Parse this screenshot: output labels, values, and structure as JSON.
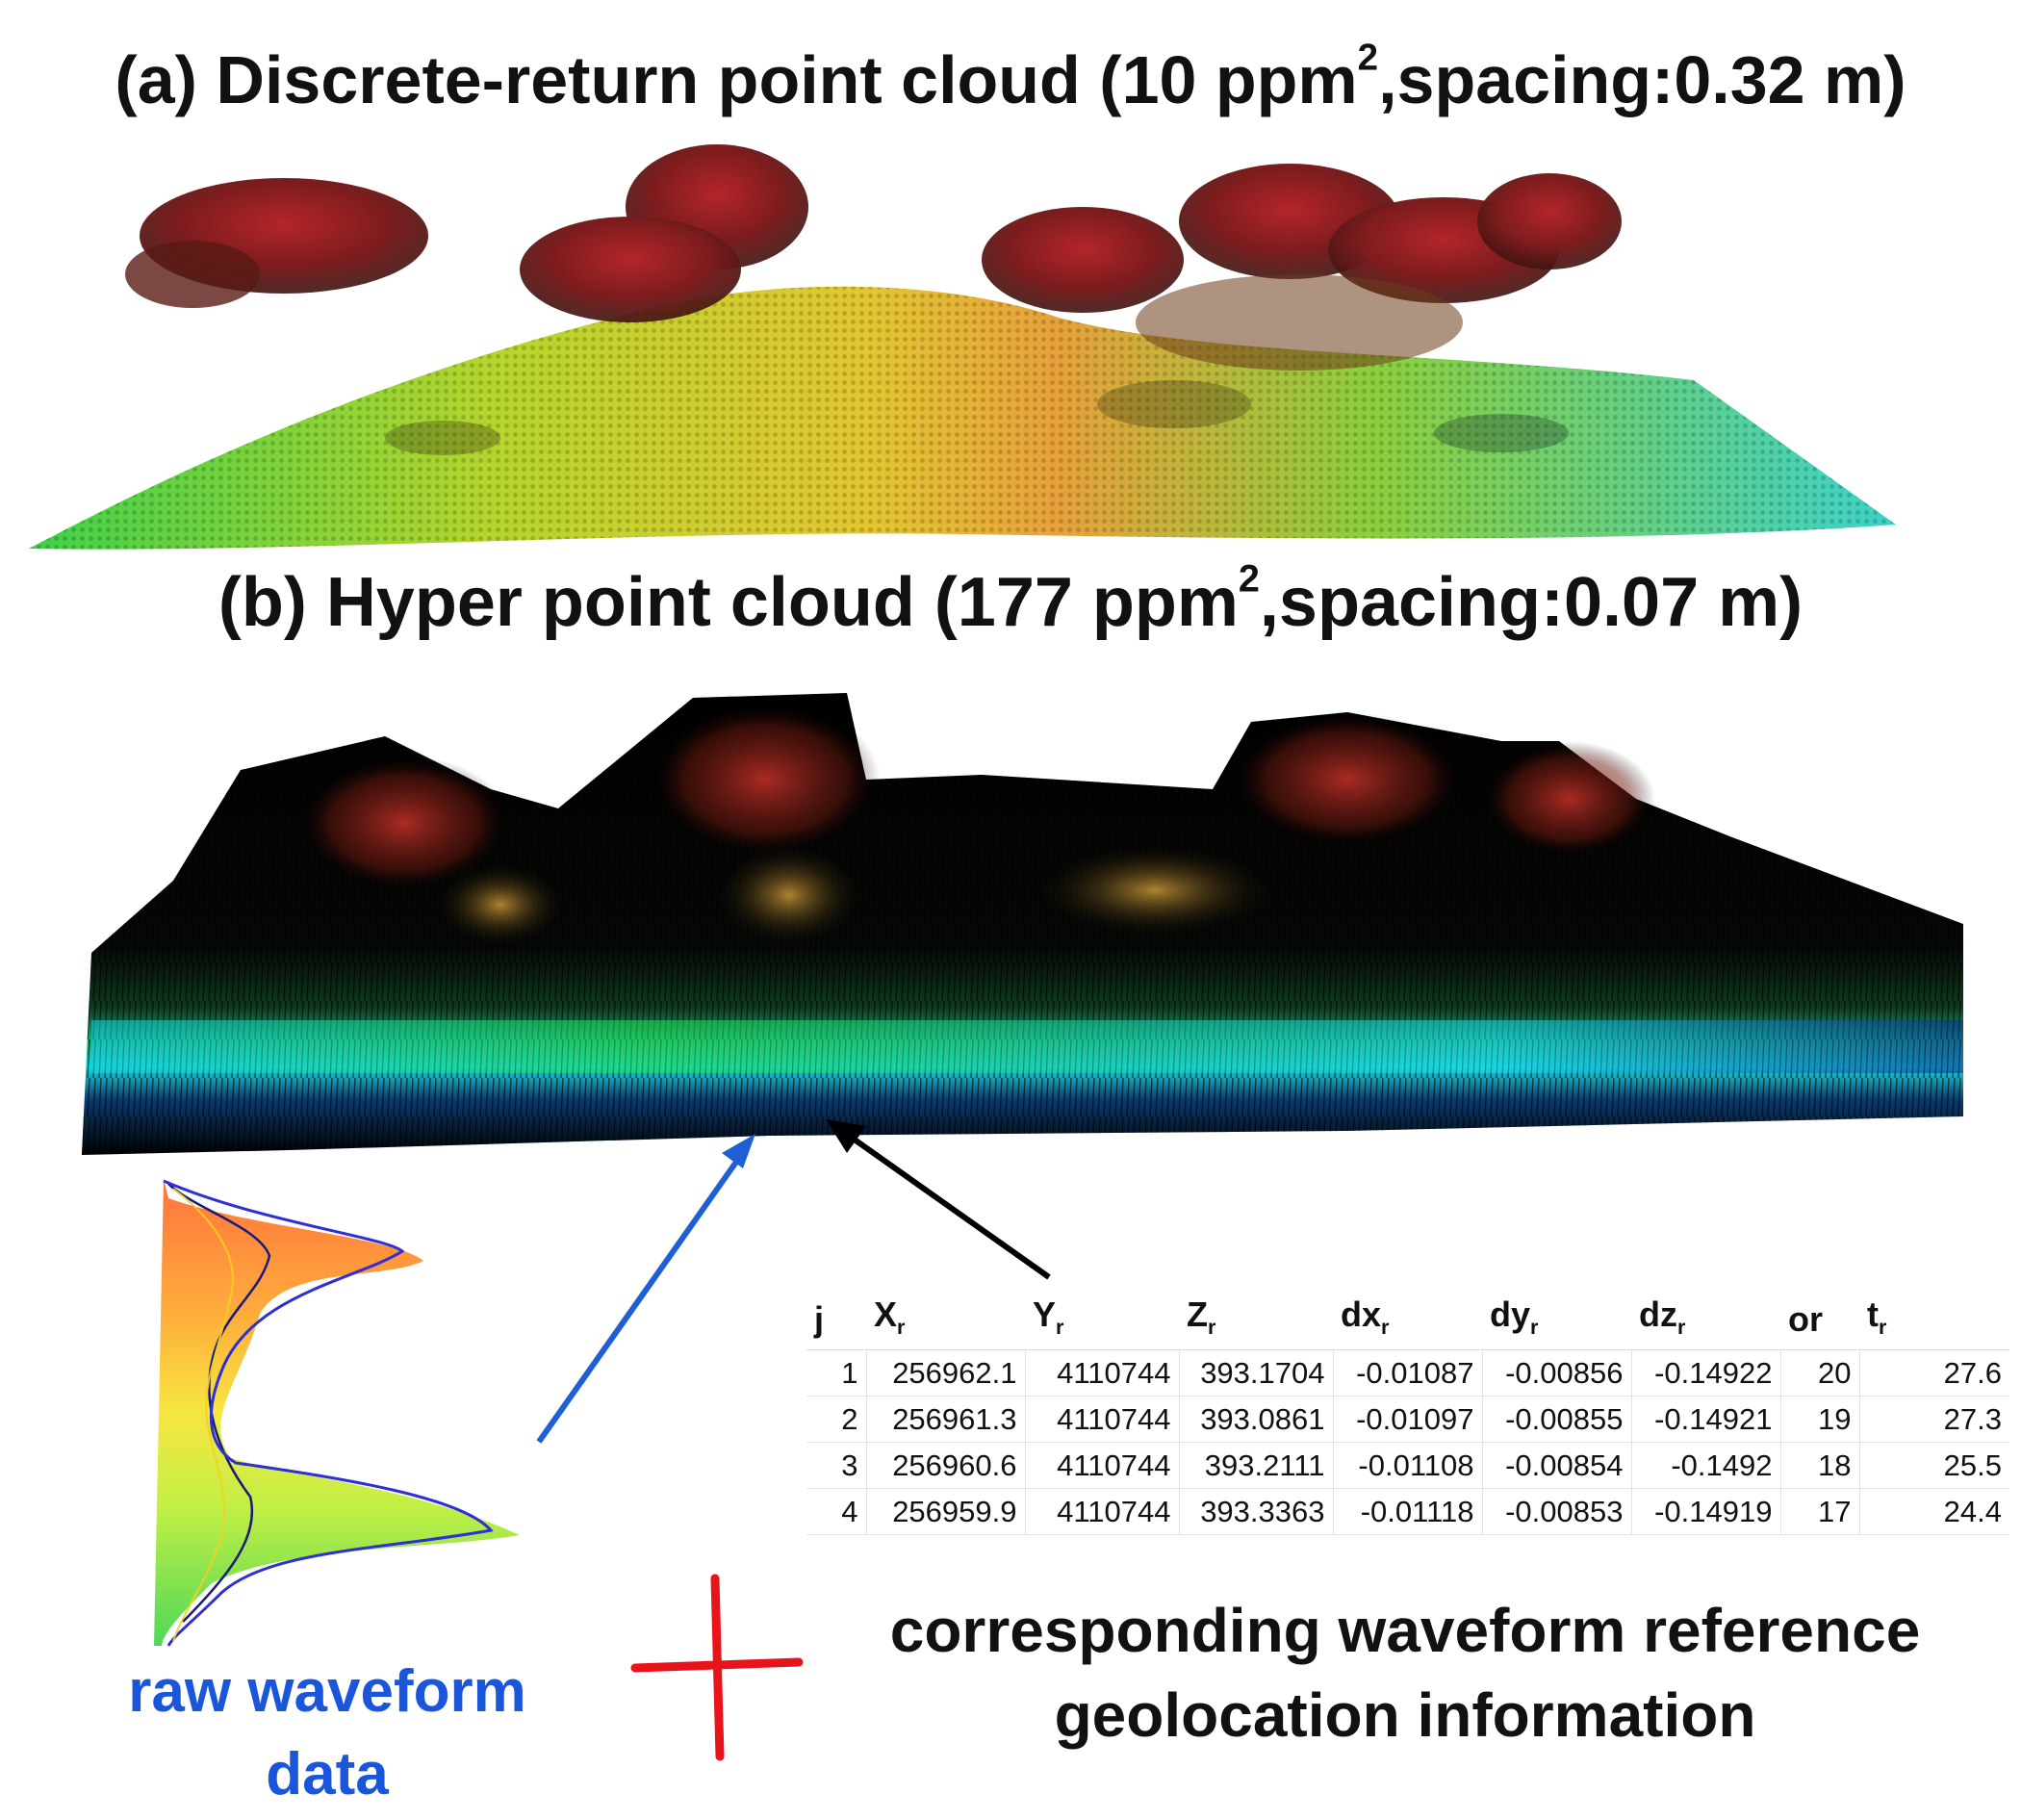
{
  "titles": {
    "a_text": "(a) Discrete-return point cloud (10 ppm",
    "a_sup": "2",
    "a_tail": ",spacing:0.32 m)",
    "b_text": "(b) Hyper point cloud (177 ppm",
    "b_sup": "2",
    "b_tail": ",spacing:0.07 m)"
  },
  "table": {
    "headers": [
      {
        "base": "j",
        "sub": ""
      },
      {
        "base": "X",
        "sub": "r"
      },
      {
        "base": "Y",
        "sub": "r"
      },
      {
        "base": "Z",
        "sub": "r"
      },
      {
        "base": "dx",
        "sub": "r"
      },
      {
        "base": "dy",
        "sub": "r"
      },
      {
        "base": "dz",
        "sub": "r"
      },
      {
        "base": "or",
        "sub": ""
      },
      {
        "base": "t",
        "sub": "r"
      }
    ],
    "rows": [
      [
        "1",
        "256962.1",
        "4110744",
        "393.1704",
        "-0.01087",
        "-0.00856",
        "-0.14922",
        "20",
        "27.6"
      ],
      [
        "2",
        "256961.3",
        "4110744",
        "393.0861",
        "-0.01097",
        "-0.00855",
        "-0.14921",
        "19",
        "27.3"
      ],
      [
        "3",
        "256960.6",
        "4110744",
        "393.2111",
        "-0.01108",
        "-0.00854",
        "-0.1492",
        "18",
        "25.5"
      ],
      [
        "4",
        "256959.9",
        "4110744",
        "393.3363",
        "-0.01118",
        "-0.00853",
        "-0.14919",
        "17",
        "24.4"
      ]
    ]
  },
  "labels": {
    "raw_line1": "raw waveform",
    "raw_line2": "data",
    "corr_line1": "corresponding waveform reference",
    "corr_line2": "geolocation information"
  },
  "colors": {
    "arrow_blue": "#1f5fd6",
    "arrow_black": "#000000",
    "plus_red": "#e8141b",
    "raw_label": "#1a56db"
  }
}
